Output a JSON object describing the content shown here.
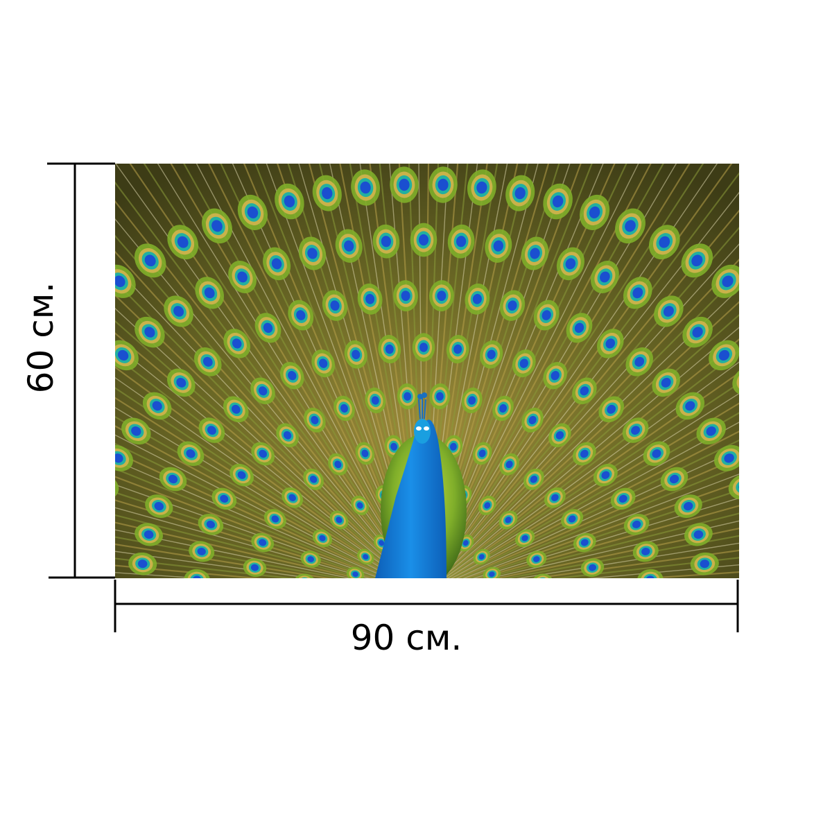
{
  "product": {
    "image": {
      "subject_icon": "peacock-feathers-icon",
      "colors": {
        "background": "#4a4a1c",
        "feather_green": "#7fae2a",
        "feather_gold": "#b7a04a",
        "eye_gold": "#c9b24a",
        "eye_teal": "#22b0a0",
        "eye_blue": "#1a4fd0",
        "neck_blue": "#1a7fd8"
      }
    },
    "dimensions": {
      "width_label": "90 см.",
      "height_label": "60 см."
    }
  }
}
